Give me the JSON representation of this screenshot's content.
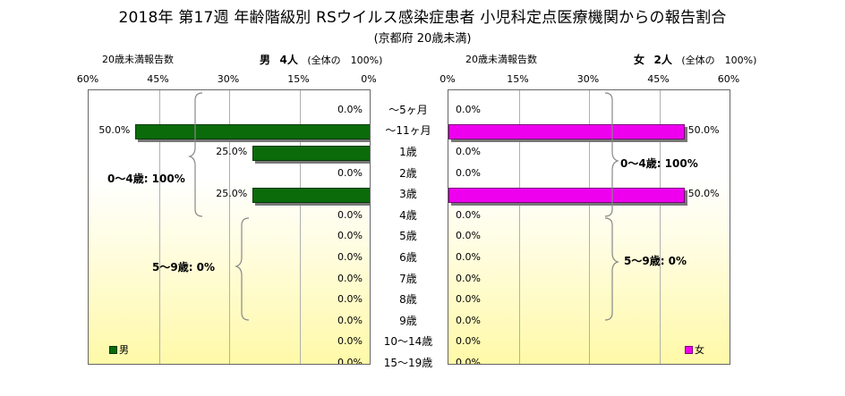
{
  "title": "2018年 第17週 年齢階級別 RSウイルス感染症患者 小児科定点医療機関からの報告割合",
  "subtitle": "(京都府 20歳未満)",
  "male_header": {
    "left": "20歳未満報告数",
    "label": "男",
    "count": "4人",
    "total_note": "(全体の　100%)"
  },
  "female_header": {
    "left": "20歳未満報告数",
    "label": "女",
    "count": "2人",
    "total_note": "(全体の　100%)"
  },
  "male_ticks": [
    "60%",
    "45%",
    "30%",
    "15%",
    "0%"
  ],
  "female_ticks": [
    "0%",
    "15%",
    "30%",
    "45%",
    "60%"
  ],
  "legend": {
    "male": "男",
    "female": "女"
  },
  "brace_notes": {
    "male_0_4": "0～4歳: 100%",
    "male_5_9": "5～9歳: 0%",
    "female_0_4": "0～4歳: 100%",
    "female_5_9": "5～9歳: 0%"
  },
  "colors": {
    "male": "#0b6b0b",
    "female": "#ee00ee"
  },
  "chart_data": {
    "type": "bar",
    "orientation": "horizontal-population-pyramid",
    "categories": [
      "～5ヶ月",
      "～11ヶ月",
      "1歳",
      "2歳",
      "3歳",
      "4歳",
      "5歳",
      "6歳",
      "7歳",
      "8歳",
      "9歳",
      "10～14歳",
      "15～19歳"
    ],
    "series": [
      {
        "name": "男",
        "values": [
          0,
          50,
          25,
          0,
          25,
          0,
          0,
          0,
          0,
          0,
          0,
          0,
          0
        ],
        "labels": [
          "0.0%",
          "50.0%",
          "25.0%",
          "0.0%",
          "25.0%",
          "0.0%",
          "0.0%",
          "0.0%",
          "0.0%",
          "0.0%",
          "0.0%",
          "0.0%",
          "0.0%"
        ]
      },
      {
        "name": "女",
        "values": [
          0,
          50,
          0,
          0,
          50,
          0,
          0,
          0,
          0,
          0,
          0,
          0,
          0
        ],
        "labels": [
          "0.0%",
          "50.0%",
          "0.0%",
          "0.0%",
          "50.0%",
          "0.0%",
          "0.0%",
          "0.0%",
          "0.0%",
          "0.0%",
          "0.0%",
          "0.0%",
          "0.0%"
        ]
      }
    ],
    "xlim": [
      0,
      60
    ],
    "unit": "%"
  }
}
